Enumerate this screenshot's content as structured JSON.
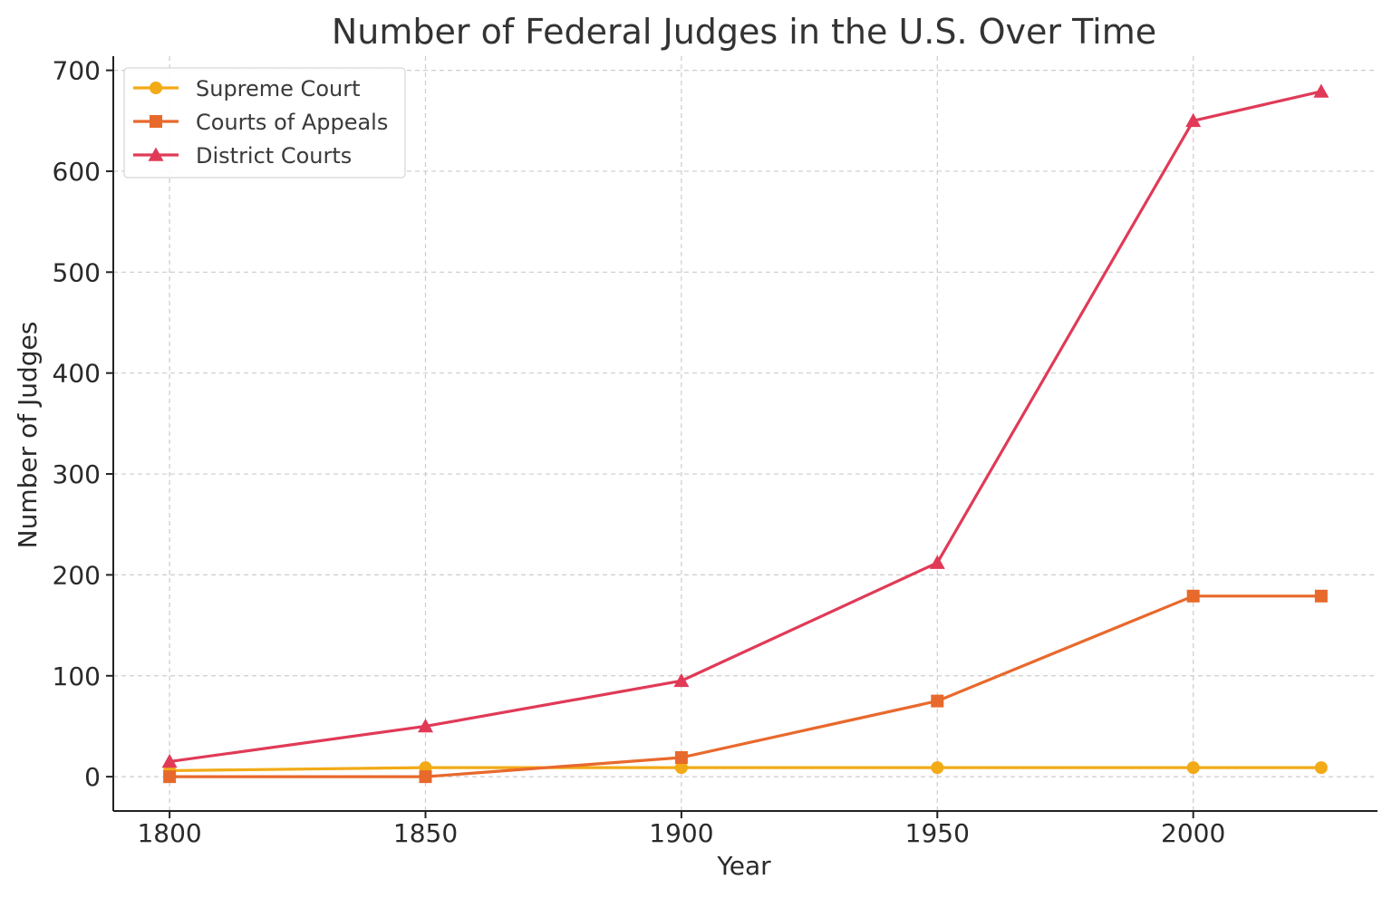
{
  "chart_data": {
    "type": "line",
    "title": "Number of Federal Judges in the U.S. Over Time",
    "xlabel": "Year",
    "ylabel": "Number of Judges",
    "x": [
      1800,
      1850,
      1900,
      1950,
      2000,
      2025
    ],
    "xlim": [
      1789,
      2036
    ],
    "ylim": [
      -34,
      714
    ],
    "xticks": [
      1800,
      1850,
      1900,
      1950,
      2000
    ],
    "yticks": [
      0,
      100,
      200,
      300,
      400,
      500,
      600,
      700
    ],
    "grid": true,
    "legend_position": "upper-left",
    "series": [
      {
        "name": "Supreme Court",
        "values": [
          6,
          9,
          9,
          9,
          9,
          9
        ],
        "color": "#f2aa16",
        "marker": "circle"
      },
      {
        "name": "Courts of Appeals",
        "values": [
          0,
          0,
          19,
          75,
          179,
          179
        ],
        "color": "#e8692c",
        "marker": "square"
      },
      {
        "name": "District Courts",
        "values": [
          15,
          50,
          95,
          212,
          650,
          679
        ],
        "color": "#e03a57",
        "marker": "triangle"
      }
    ]
  }
}
